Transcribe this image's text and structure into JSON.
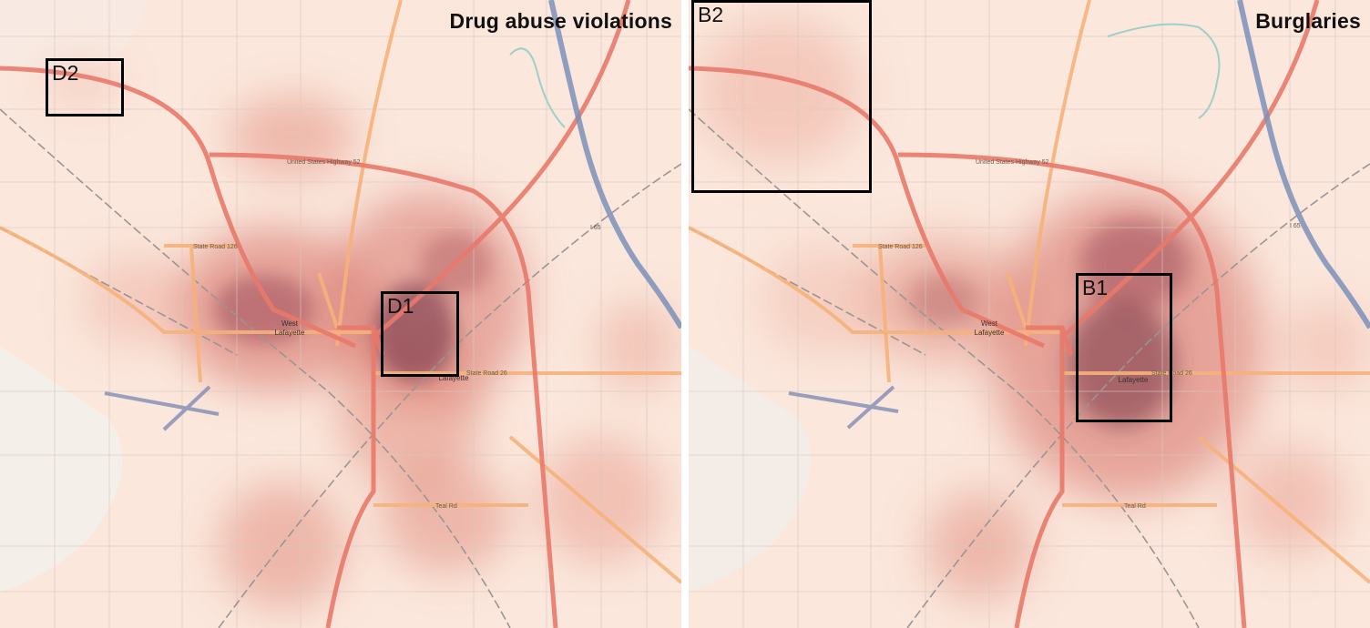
{
  "panels": [
    {
      "title": "Drug abuse violations",
      "boxes": [
        {
          "label": "D1"
        },
        {
          "label": "D2"
        }
      ]
    },
    {
      "title": "Burglaries",
      "boxes": [
        {
          "label": "B1"
        },
        {
          "label": "B2"
        }
      ]
    }
  ],
  "map_labels": {
    "west_lafayette_1": "West",
    "west_lafayette_2": "Lafayette",
    "lafayette": "Lafayette",
    "state_road_26": "State Road 26",
    "state_road_126": "State Road 126",
    "us_highway_52": "United States Highway 52",
    "teal_rd": "Teal Rd",
    "i65": "I 65"
  },
  "colors": {
    "background": "#fbe7dc",
    "heat": "#c0392b",
    "heat_dark": "#7d3a4c",
    "road_major": "#e8796a",
    "road_state": "#f5b27a",
    "interstate": "#7b8fb8",
    "river": "#9fd0c8"
  }
}
